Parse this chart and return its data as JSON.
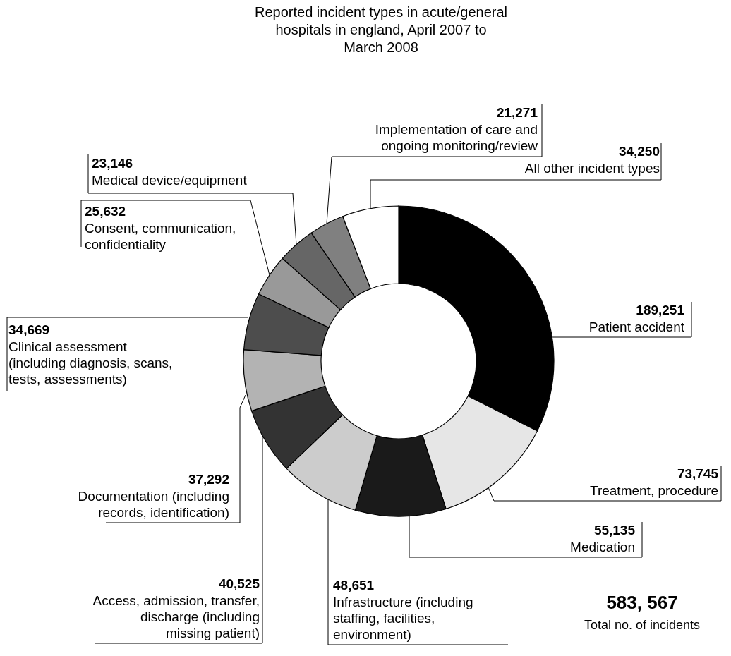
{
  "chart_data": {
    "type": "donut",
    "title": "Reported incident types in acute/general\nhospitals in england, April 2007 to\nMarch 2008",
    "categories": [
      "Patient accident",
      "Treatment, procedure",
      "Medication",
      "Infrastructure (including\nstaffing, facilities,\nenvironment)",
      "Access, admission, transfer,\ndischarge (including\nmissing patient)",
      "Documentation (including\nrecords, identification)",
      "Clinical assessment\n(including diagnosis, scans,\ntests, assessments)",
      "Consent, communication,\nconfidentiality",
      "Medical device/equipment",
      "Implementation of care and\nongoing monitoring/review",
      "All other incident types"
    ],
    "values": [
      189251,
      73745,
      55135,
      48651,
      40525,
      37292,
      34669,
      25632,
      23146,
      21271,
      34250
    ],
    "value_labels": [
      "189,251",
      "73,745",
      "55,135",
      "48,651",
      "40,525",
      "37,292",
      "34,669",
      "25,632",
      "23,146",
      "21,271",
      "34,250"
    ],
    "colors": [
      "#000000",
      "#e6e6e6",
      "#1a1a1a",
      "#cccccc",
      "#333333",
      "#b3b3b3",
      "#4d4d4d",
      "#999999",
      "#666666",
      "#808080",
      "#ffffff"
    ],
    "annotations": [
      "583, 567",
      "Total no. of incidents"
    ]
  }
}
